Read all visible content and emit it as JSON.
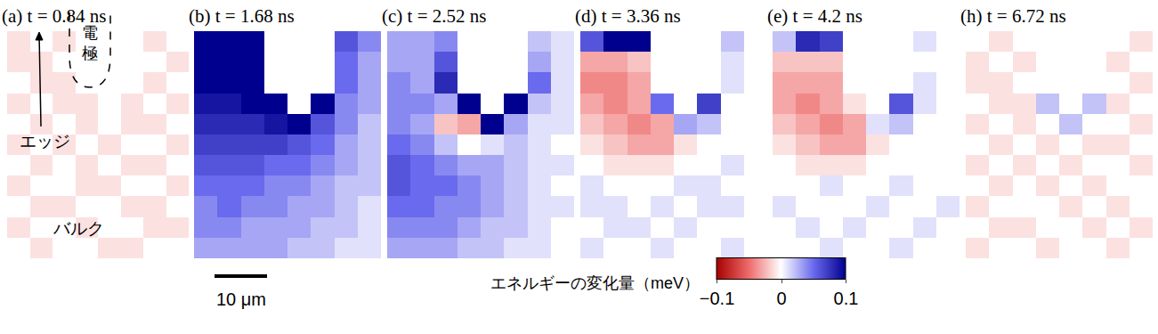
{
  "chart_data": [
    {
      "type": "heatmap",
      "title": "(a) t = 0.84 ns",
      "tick_labels": false,
      "z": [
        [
          -0.01,
          0.0,
          -0.01,
          null,
          null,
          null,
          -0.01,
          0.0
        ],
        [
          -0.01,
          -0.01,
          0.0,
          null,
          null,
          null,
          0.0,
          -0.01
        ],
        [
          0.0,
          -0.01,
          -0.01,
          null,
          null,
          null,
          -0.01,
          0.0
        ],
        [
          -0.01,
          0.0,
          -0.01,
          -0.01,
          null,
          -0.01,
          0.0,
          -0.01
        ],
        [
          0.0,
          -0.01,
          0.0,
          -0.01,
          0.0,
          -0.01,
          -0.01,
          0.0
        ],
        [
          -0.01,
          0.0,
          -0.01,
          0.0,
          -0.01,
          0.0,
          0.0,
          -0.01
        ],
        [
          0.0,
          -0.01,
          0.0,
          -0.01,
          0.0,
          -0.01,
          -0.01,
          0.0
        ],
        [
          -0.01,
          0.0,
          0.0,
          -0.01,
          -0.01,
          0.0,
          0.0,
          -0.01
        ],
        [
          0.0,
          -0.01,
          -0.01,
          0.0,
          0.0,
          -0.01,
          -0.01,
          0.0
        ],
        [
          -0.01,
          0.0,
          0.0,
          -0.01,
          0.0,
          0.0,
          -0.01,
          -0.01
        ],
        [
          0.0,
          -0.01,
          0.0,
          0.0,
          -0.01,
          -0.01,
          0.0,
          0.0
        ]
      ]
    },
    {
      "type": "heatmap",
      "title": "(b) t = 1.68 ns",
      "tick_labels": false,
      "z": [
        [
          0.12,
          0.13,
          0.13,
          null,
          null,
          null,
          0.06,
          0.04
        ],
        [
          0.11,
          0.12,
          0.12,
          null,
          null,
          null,
          0.05,
          0.03
        ],
        [
          0.1,
          0.1,
          0.11,
          null,
          null,
          null,
          0.05,
          0.03
        ],
        [
          0.09,
          0.09,
          0.1,
          0.12,
          null,
          0.1,
          0.04,
          0.03
        ],
        [
          0.08,
          0.08,
          0.08,
          0.09,
          0.1,
          0.06,
          0.04,
          0.02
        ],
        [
          0.07,
          0.07,
          0.07,
          0.07,
          0.06,
          0.05,
          0.03,
          0.02
        ],
        [
          0.06,
          0.06,
          0.06,
          0.05,
          0.05,
          0.04,
          0.03,
          0.02
        ],
        [
          0.05,
          0.05,
          0.05,
          0.04,
          0.04,
          0.03,
          0.02,
          0.02
        ],
        [
          0.04,
          0.05,
          0.04,
          0.04,
          0.03,
          0.03,
          0.02,
          0.01
        ],
        [
          0.04,
          0.04,
          0.03,
          0.03,
          0.03,
          0.02,
          0.02,
          0.01
        ],
        [
          0.03,
          0.03,
          0.03,
          0.03,
          0.02,
          0.02,
          0.01,
          0.01
        ]
      ]
    },
    {
      "type": "heatmap",
      "title": "(c) t = 2.52 ns",
      "tick_labels": false,
      "z": [
        [
          0.03,
          0.03,
          0.04,
          null,
          null,
          null,
          0.02,
          0.01
        ],
        [
          0.03,
          0.03,
          0.06,
          null,
          null,
          null,
          0.03,
          0.01
        ],
        [
          0.04,
          0.03,
          0.08,
          null,
          null,
          null,
          0.05,
          0.01
        ],
        [
          0.04,
          0.04,
          0.03,
          0.12,
          null,
          0.11,
          0.02,
          0.01
        ],
        [
          0.04,
          0.03,
          -0.02,
          -0.03,
          0.1,
          0.03,
          0.01,
          0.01
        ],
        [
          0.05,
          0.04,
          0.02,
          0.0,
          0.01,
          0.02,
          0.01,
          0.0
        ],
        [
          0.06,
          0.05,
          0.04,
          0.03,
          0.03,
          0.02,
          0.01,
          0.01
        ],
        [
          0.06,
          0.05,
          0.05,
          0.04,
          0.03,
          0.02,
          0.01,
          0.0
        ],
        [
          0.05,
          0.05,
          0.04,
          0.04,
          0.03,
          0.02,
          0.01,
          0.01
        ],
        [
          0.04,
          0.04,
          0.04,
          0.03,
          0.02,
          0.02,
          0.01,
          0.0
        ],
        [
          0.03,
          0.03,
          0.03,
          0.02,
          0.02,
          0.01,
          0.01,
          0.0
        ]
      ]
    },
    {
      "type": "heatmap",
      "title": "(d) t = 3.36 ns",
      "tick_labels": false,
      "z": [
        [
          0.06,
          0.1,
          0.11,
          null,
          null,
          null,
          0.02,
          0.0
        ],
        [
          -0.03,
          -0.03,
          -0.02,
          null,
          null,
          null,
          0.01,
          0.0
        ],
        [
          -0.04,
          -0.04,
          -0.03,
          null,
          null,
          null,
          0.01,
          0.0
        ],
        [
          -0.03,
          -0.04,
          -0.03,
          0.05,
          null,
          0.07,
          0.0,
          0.0
        ],
        [
          -0.02,
          -0.03,
          -0.04,
          -0.03,
          0.03,
          0.02,
          0.0,
          0.0
        ],
        [
          -0.01,
          -0.02,
          -0.03,
          -0.03,
          -0.01,
          0.0,
          0.0,
          0.0
        ],
        [
          0.0,
          -0.01,
          -0.01,
          -0.01,
          0.0,
          0.0,
          0.01,
          0.0
        ],
        [
          0.01,
          0.0,
          0.0,
          0.0,
          0.01,
          0.01,
          0.0,
          0.0
        ],
        [
          0.01,
          0.01,
          0.0,
          0.01,
          0.0,
          0.01,
          0.01,
          0.0
        ],
        [
          0.0,
          0.01,
          0.01,
          0.0,
          0.01,
          0.0,
          0.0,
          0.0
        ],
        [
          0.01,
          0.0,
          0.0,
          0.01,
          0.0,
          0.0,
          0.01,
          0.0
        ]
      ]
    },
    {
      "type": "heatmap",
      "title": "(e) t = 4.2 ns",
      "tick_labels": false,
      "z": [
        [
          0.02,
          0.08,
          0.07,
          null,
          null,
          null,
          0.01,
          0.0
        ],
        [
          -0.02,
          -0.02,
          -0.02,
          null,
          null,
          null,
          0.0,
          0.0
        ],
        [
          -0.03,
          -0.03,
          -0.03,
          null,
          null,
          null,
          0.01,
          0.0
        ],
        [
          -0.03,
          -0.04,
          -0.03,
          -0.01,
          null,
          0.06,
          0.01,
          0.0
        ],
        [
          -0.02,
          -0.03,
          -0.04,
          -0.03,
          0.01,
          0.02,
          0.0,
          0.0
        ],
        [
          -0.01,
          -0.02,
          -0.03,
          -0.03,
          -0.01,
          0.0,
          0.0,
          0.0
        ],
        [
          0.0,
          -0.01,
          -0.01,
          -0.01,
          0.0,
          0.0,
          0.0,
          0.0
        ],
        [
          0.0,
          0.0,
          0.01,
          0.0,
          0.0,
          0.01,
          0.0,
          0.0
        ],
        [
          0.01,
          0.0,
          0.0,
          0.0,
          0.01,
          0.0,
          0.0,
          0.01
        ],
        [
          0.0,
          0.01,
          0.0,
          0.01,
          0.0,
          0.0,
          0.01,
          0.0
        ],
        [
          0.0,
          0.0,
          0.01,
          0.0,
          0.0,
          0.01,
          0.0,
          0.0
        ]
      ]
    },
    {
      "type": "heatmap",
      "title": "(h) t = 6.72 ns",
      "tick_labels": false,
      "z": [
        [
          0.0,
          -0.01,
          0.0,
          null,
          null,
          null,
          0.0,
          -0.01
        ],
        [
          -0.01,
          0.0,
          -0.01,
          null,
          null,
          null,
          -0.01,
          0.0
        ],
        [
          -0.01,
          -0.01,
          0.0,
          null,
          null,
          null,
          0.0,
          -0.01
        ],
        [
          0.0,
          -0.01,
          -0.01,
          0.02,
          null,
          0.02,
          -0.01,
          0.0
        ],
        [
          -0.01,
          0.0,
          -0.01,
          0.0,
          0.02,
          0.0,
          0.0,
          -0.01
        ],
        [
          0.0,
          -0.01,
          0.0,
          -0.01,
          0.0,
          -0.01,
          -0.01,
          0.0
        ],
        [
          -0.01,
          0.0,
          -0.01,
          0.0,
          -0.01,
          0.0,
          0.0,
          -0.01
        ],
        [
          0.0,
          -0.01,
          0.0,
          -0.01,
          0.0,
          -0.01,
          0.0,
          0.0
        ],
        [
          -0.01,
          0.0,
          0.0,
          0.0,
          -0.01,
          0.0,
          -0.01,
          0.0
        ],
        [
          0.0,
          -0.01,
          -0.01,
          0.0,
          0.0,
          -0.01,
          0.0,
          -0.01
        ],
        [
          -0.01,
          0.0,
          0.0,
          -0.01,
          0.0,
          0.0,
          -0.01,
          0.0
        ]
      ]
    }
  ],
  "colorbar": {
    "title": "エネルギーの変化量（meV）",
    "range": [
      -0.1,
      0.1
    ],
    "ticks": [
      {
        "value": -0.1,
        "label": "−0.1"
      },
      0,
      0.1
    ]
  },
  "labels": {
    "electrode": "電極",
    "edge": "エッジ",
    "bulk": "バルク"
  },
  "scale_bar": "10 μm"
}
